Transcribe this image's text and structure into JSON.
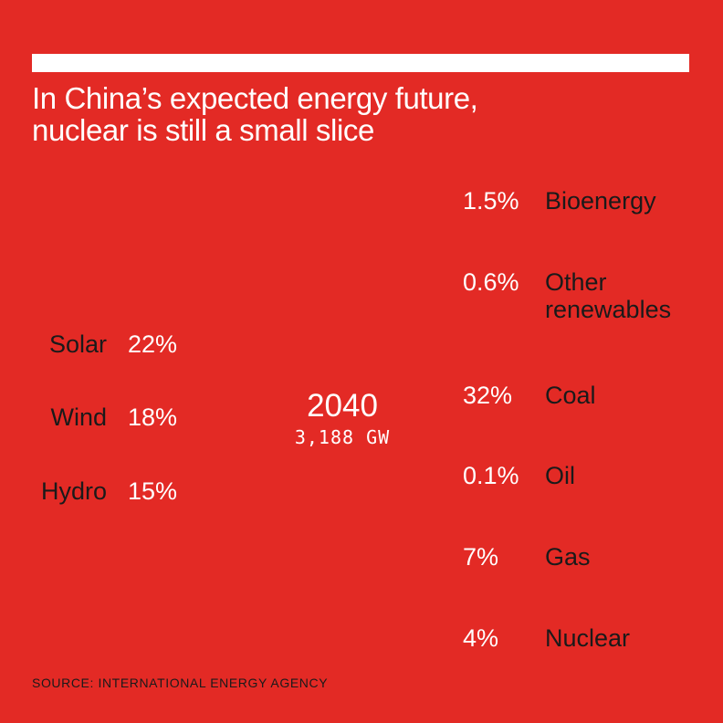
{
  "colors": {
    "background": "#e32a25",
    "label_text": "#1a1a1a",
    "value_text": "#ffffff"
  },
  "title_lines": [
    "In China’s expected energy future,",
    "nuclear is still a small slice"
  ],
  "center": {
    "year": "2040",
    "total": "3,188 GW"
  },
  "source": "SOURCE: INTERNATIONAL ENERGY AGENCY",
  "chart_data": {
    "type": "pie",
    "title": "In China’s expected energy future, nuclear is still a small slice",
    "center_label": "2040",
    "total": "3,188 GW",
    "slices": [
      {
        "name": "Solar",
        "label": "22%",
        "value": 22
      },
      {
        "name": "Wind",
        "label": "18%",
        "value": 18
      },
      {
        "name": "Hydro",
        "label": "15%",
        "value": 15
      },
      {
        "name": "Bioenergy",
        "label": "1.5%",
        "value": 1.5
      },
      {
        "name": "Other renewables",
        "label": "0.6%",
        "value": 0.6
      },
      {
        "name": "Coal",
        "label": "32%",
        "value": 32
      },
      {
        "name": "Oil",
        "label": "0.1%",
        "value": 0.1
      },
      {
        "name": "Gas",
        "label": "7%",
        "value": 7
      },
      {
        "name": "Nuclear",
        "label": "4%",
        "value": 4
      }
    ]
  }
}
